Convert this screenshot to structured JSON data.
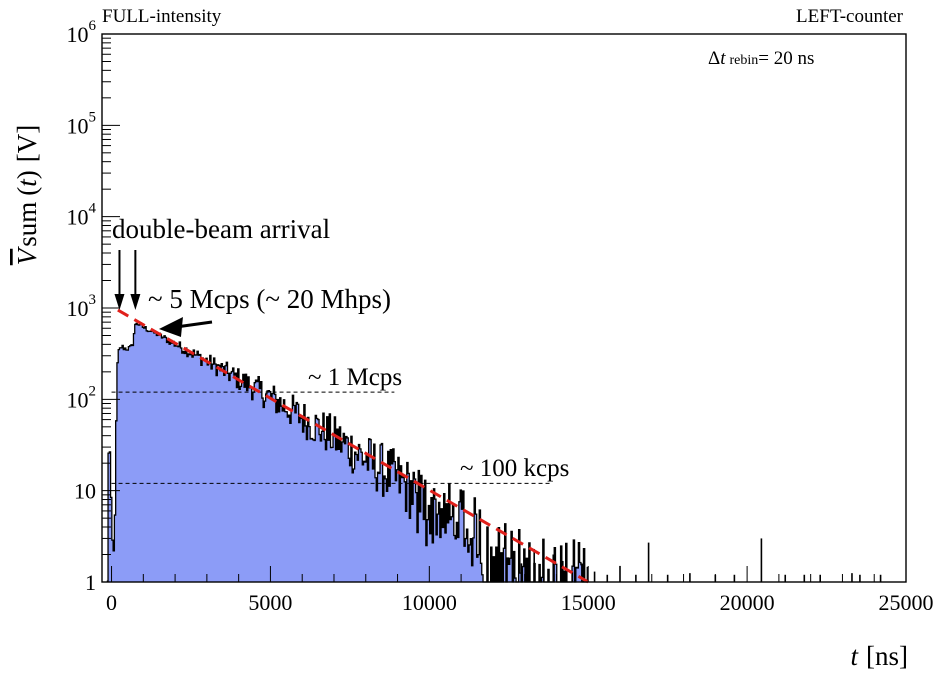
{
  "header": {
    "left_label": "FULL-intensity",
    "right_label": "LEFT-counter"
  },
  "chart_data": {
    "type": "area",
    "y_scale": "log",
    "title": "",
    "xlabel": {
      "symbol": "t",
      "unit": "[ns]"
    },
    "ylabel": {
      "symbol": "V",
      "func": "sum",
      "arg": "t",
      "unit": "[V]"
    },
    "xlim": [
      -300,
      25000
    ],
    "ylim": [
      1,
      1000000
    ],
    "x_ticks": [
      0,
      5000,
      10000,
      15000,
      20000,
      25000
    ],
    "x_tick_labels": [
      "0",
      "5000",
      "10000",
      "15000",
      "20000",
      "25000"
    ],
    "y_ticks": [
      1,
      10,
      100,
      1000,
      10000,
      100000,
      1000000
    ],
    "y_tick_labels": [
      {
        "base": "1",
        "exp": ""
      },
      {
        "base": "10",
        "exp": ""
      },
      {
        "base": "10",
        "exp": "2"
      },
      {
        "base": "10",
        "exp": "3"
      },
      {
        "base": "10",
        "exp": "4"
      },
      {
        "base": "10",
        "exp": "5"
      },
      {
        "base": "10",
        "exp": "6"
      }
    ],
    "rebin_label": {
      "delta": "Δ",
      "var": "t",
      "sub": "rebin",
      "value": "= 20 ns"
    },
    "histogram_profile": [
      [
        -150,
        1
      ],
      [
        -100,
        60
      ],
      [
        -50,
        15
      ],
      [
        0,
        3
      ],
      [
        60,
        2
      ],
      [
        100,
        8
      ],
      [
        150,
        200
      ],
      [
        200,
        330
      ],
      [
        300,
        380
      ],
      [
        400,
        360
      ],
      [
        500,
        360
      ],
      [
        600,
        370
      ],
      [
        650,
        410
      ],
      [
        700,
        560
      ],
      [
        750,
        700
      ],
      [
        800,
        680
      ],
      [
        1000,
        610
      ],
      [
        1500,
        500
      ],
      [
        2000,
        400
      ],
      [
        3000,
        260
      ],
      [
        4000,
        165
      ],
      [
        5000,
        105
      ],
      [
        6000,
        62
      ],
      [
        7000,
        38
      ],
      [
        8000,
        22
      ],
      [
        9000,
        13
      ],
      [
        10000,
        7
      ],
      [
        11000,
        4.2
      ],
      [
        12000,
        2.4
      ],
      [
        13000,
        1.5
      ],
      [
        14000,
        1.1
      ],
      [
        15000,
        1
      ]
    ],
    "tail_spikes": [
      [
        12900,
        1.6
      ],
      [
        13300,
        2.3
      ],
      [
        13600,
        1.4
      ],
      [
        13900,
        2.0
      ],
      [
        14200,
        1.7
      ],
      [
        14500,
        1.3
      ],
      [
        14800,
        1.6
      ],
      [
        15200,
        1.3
      ],
      [
        15600,
        1.2
      ],
      [
        16000,
        1.5
      ],
      [
        16500,
        1.2
      ],
      [
        16900,
        2.7
      ],
      [
        17500,
        1.2
      ],
      [
        18200,
        1.25
      ],
      [
        19000,
        1.2
      ],
      [
        19600,
        1.2
      ],
      [
        20450,
        3.0
      ],
      [
        21200,
        1.2
      ],
      [
        21800,
        1.2
      ],
      [
        22300,
        1.2
      ],
      [
        23300,
        1.25
      ],
      [
        23550,
        1.2
      ],
      [
        24200,
        1.2
      ]
    ],
    "fit_line": {
      "x": [
        200,
        15000
      ],
      "y": [
        950,
        1.0
      ],
      "color": "#e0201b"
    },
    "reference_lines": [
      {
        "y": 120,
        "x": [
          0,
          8900
        ],
        "label": "~ 1 Mcps"
      },
      {
        "y": 12,
        "x": [
          0,
          13800
        ],
        "label": "~ 100 kcps"
      }
    ],
    "annotations": {
      "double_beam": "double-beam arrival",
      "arrival_times": [
        250,
        750
      ],
      "peak_rate": "~ 5 Mcps  (~ 20 Mhps)"
    },
    "fill_color": "#8c9cf7",
    "line_color": "#000000"
  }
}
